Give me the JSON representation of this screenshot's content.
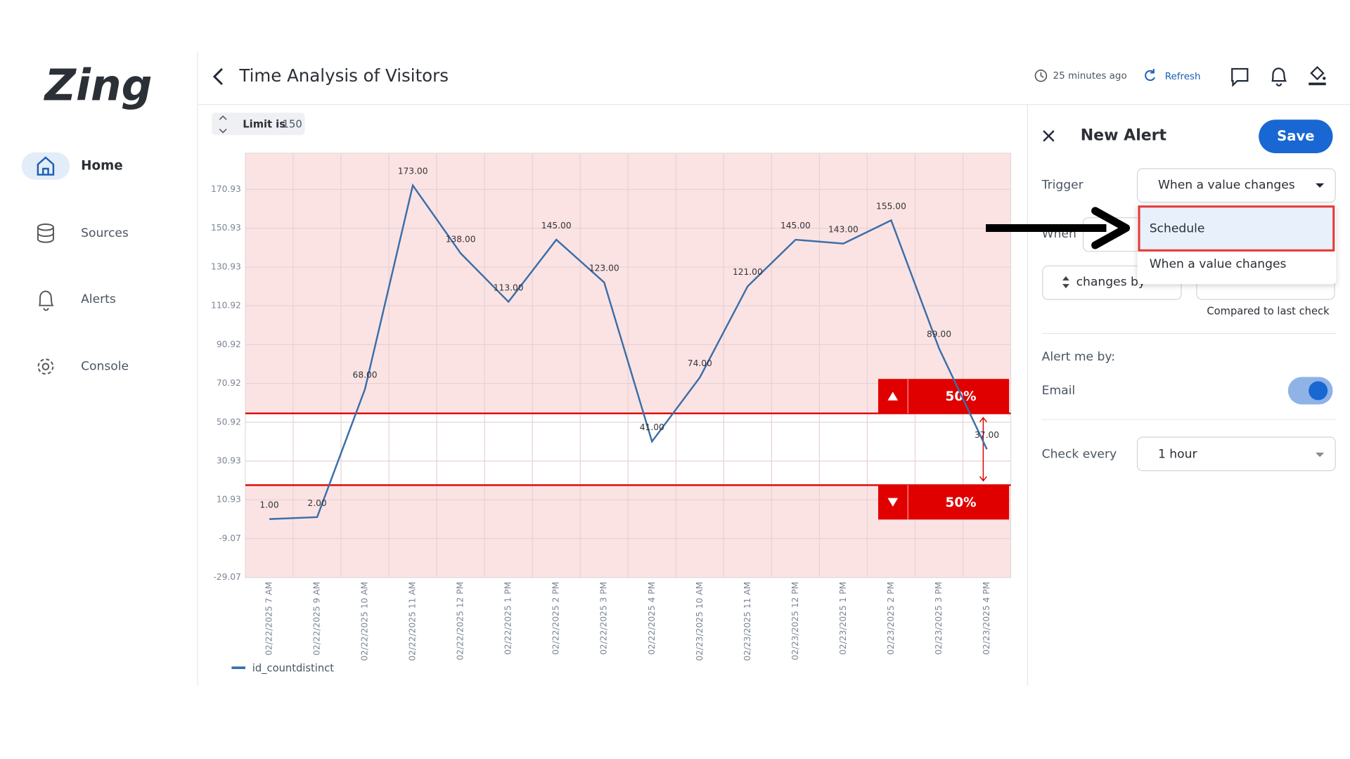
{
  "sidebar": {
    "logo": "Zing",
    "nav": [
      "Home",
      "Sources",
      "Alerts",
      "Console"
    ]
  },
  "header": {
    "title": "Time Analysis of Visitors",
    "updated": "25 minutes ago",
    "refresh": "Refresh"
  },
  "limit": {
    "label": "Limit is",
    "value": 150
  },
  "chart_data": {
    "type": "line",
    "categories": [
      "02/22/2025 7 AM",
      "02/22/2025 9 AM",
      "02/22/2025 10 AM",
      "02/22/2025 11 AM",
      "02/22/2025 12 PM",
      "02/22/2025 1 PM",
      "02/22/2025 2 PM",
      "02/22/2025 3 PM",
      "02/22/2025 4 PM",
      "02/23/2025 10 AM",
      "02/23/2025 11 AM",
      "02/23/2025 12 PM",
      "02/23/2025 1 PM",
      "02/23/2025 2 PM",
      "02/23/2025 3 PM",
      "02/23/2025 4 PM"
    ],
    "series": [
      {
        "name": "id_countdistinct",
        "color": "#3b6ea8",
        "values": [
          1,
          2,
          68,
          173,
          138,
          113,
          145,
          123,
          41,
          74,
          121,
          145,
          143,
          155,
          89,
          37
        ],
        "value_labels": [
          "1.00",
          "2.00",
          "68.00",
          "173.00",
          "138.00",
          "113.00",
          "145.00",
          "123.00",
          "41.00",
          "74.00",
          "121.00",
          "145.00",
          "143.00",
          "155.00",
          "89.00",
          "37.00"
        ]
      }
    ],
    "ylim": [
      -29.07,
      189.6
    ],
    "yticks": [
      -29.07,
      -9.07,
      10.93,
      30.93,
      50.92,
      70.92,
      90.92,
      110.92,
      130.93,
      150.93,
      170.93
    ],
    "grid": true,
    "thresholds": [
      {
        "value": 55.5,
        "label": "50%"
      },
      {
        "value": 18.5,
        "label": "50%"
      }
    ],
    "threshold_color": "#e00000",
    "alert_fill": "#fbe3e4"
  },
  "alert": {
    "title": "New Alert",
    "save": "Save",
    "trigger_label": "Trigger",
    "trigger_value": "When a value changes",
    "options": [
      "Schedule",
      "When a value changes"
    ],
    "when_label": "When",
    "changes_by": "changes by",
    "compared": "Compared to last check",
    "alert_me_by": "Alert me by:",
    "email": "Email",
    "check_every_label": "Check every",
    "check_every_value": "1 hour"
  }
}
